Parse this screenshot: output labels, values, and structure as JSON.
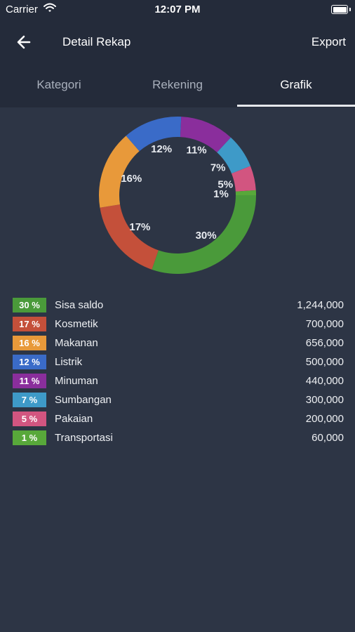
{
  "status_bar": {
    "carrier": "Carrier",
    "time": "12:07 PM"
  },
  "navbar": {
    "title": "Detail Rekap",
    "export_label": "Export"
  },
  "tabs": [
    {
      "label": "Kategori",
      "active": false
    },
    {
      "label": "Rekening",
      "active": false
    },
    {
      "label": "Grafik",
      "active": true
    }
  ],
  "chart_data": {
    "type": "pie",
    "variant": "donut",
    "slices": [
      {
        "name": "Sisa saldo",
        "percent": 30,
        "label": "30%",
        "value": 1244000,
        "color": "#4a9a3a"
      },
      {
        "name": "Kosmetik",
        "percent": 17,
        "label": "17%",
        "value": 700000,
        "color": "#c4503a"
      },
      {
        "name": "Makanan",
        "percent": 16,
        "label": "16%",
        "value": 656000,
        "color": "#e8993a"
      },
      {
        "name": "Listrik",
        "percent": 12,
        "label": "12%",
        "value": 500000,
        "color": "#3a6bc8"
      },
      {
        "name": "Minuman",
        "percent": 11,
        "label": "11%",
        "value": 440000,
        "color": "#8a2e9c"
      },
      {
        "name": "Sumbangan",
        "percent": 7,
        "label": "7%",
        "value": 300000,
        "color": "#3e9ac8"
      },
      {
        "name": "Pakaian",
        "percent": 5,
        "label": "5%",
        "value": 200000,
        "color": "#d25580"
      },
      {
        "name": "Transportasi",
        "percent": 1,
        "label": "1%",
        "value": 60000,
        "color": "#58a83a"
      }
    ]
  },
  "legend": [
    {
      "badge": "30 %",
      "name": "Sisa saldo",
      "amount": "1,244,000",
      "color": "#4a9a3a"
    },
    {
      "badge": "17 %",
      "name": "Kosmetik",
      "amount": "700,000",
      "color": "#c4503a"
    },
    {
      "badge": "16 %",
      "name": "Makanan",
      "amount": "656,000",
      "color": "#e8993a"
    },
    {
      "badge": "12 %",
      "name": "Listrik",
      "amount": "500,000",
      "color": "#3a6bc8"
    },
    {
      "badge": "11 %",
      "name": "Minuman",
      "amount": "440,000",
      "color": "#8a2e9c"
    },
    {
      "badge": "7 %",
      "name": "Sumbangan",
      "amount": "300,000",
      "color": "#3e9ac8"
    },
    {
      "badge": "5 %",
      "name": "Pakaian",
      "amount": "200,000",
      "color": "#d25580"
    },
    {
      "badge": "1 %",
      "name": "Transportasi",
      "amount": "60,000",
      "color": "#58a83a"
    }
  ]
}
